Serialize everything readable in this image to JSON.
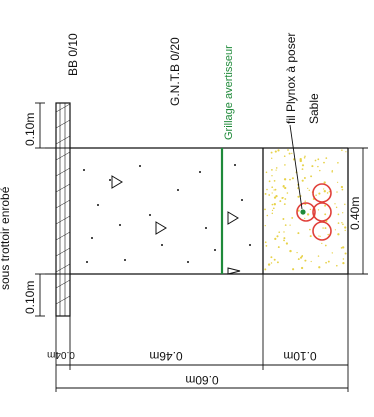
{
  "labels": {
    "sous_trottoir": "sous trottoir enrobé",
    "bb": "BB 0/10",
    "gntb": "G.N.T.B 0/20",
    "grillage": "Grillage avertisseur",
    "fil": "fil Plynox à poser",
    "sable": "Sable"
  },
  "dimensions": {
    "top_left": "0.10m",
    "bottom_left": "0.10m",
    "right": "0.40m",
    "base_a": "0.04m",
    "base_b": "0.46m",
    "base_c": "0.10m",
    "total": "0.60m"
  },
  "colors": {
    "grillage": "#1f8a3a",
    "pipes": "#e0403a",
    "sand": "#e7d24a"
  }
}
